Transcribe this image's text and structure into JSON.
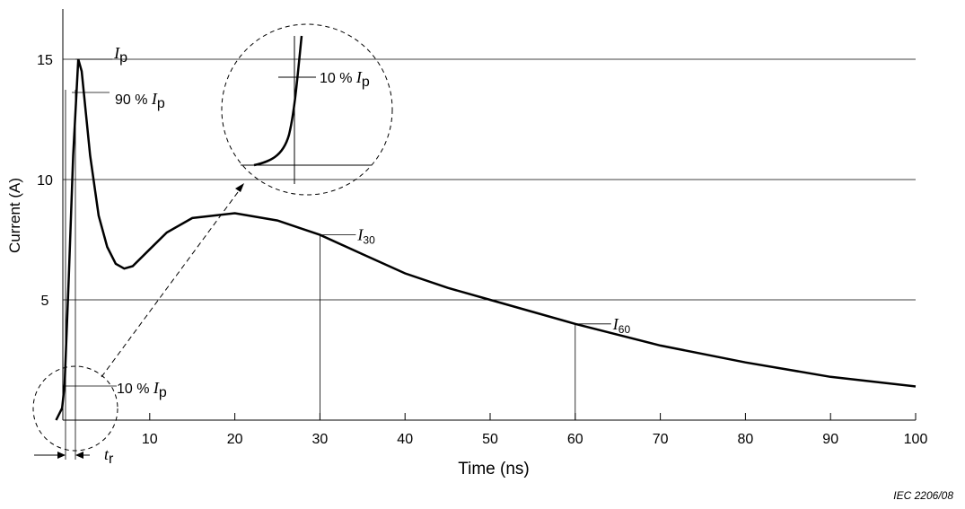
{
  "chart_data": {
    "type": "line",
    "x": [
      -1,
      -0.3,
      0,
      0.5,
      1,
      1.6,
      2,
      3,
      4,
      5,
      6,
      7,
      8,
      10,
      12,
      15,
      20,
      25,
      30,
      35,
      40,
      45,
      50,
      60,
      70,
      80,
      90,
      100
    ],
    "values": [
      0,
      0.5,
      1.5,
      6,
      11,
      15,
      14.5,
      11,
      8.5,
      7.2,
      6.5,
      6.3,
      6.4,
      7.1,
      7.8,
      8.4,
      8.6,
      8.3,
      7.7,
      6.9,
      6.1,
      5.5,
      5.0,
      4.0,
      3.1,
      2.4,
      1.8,
      1.4
    ],
    "color": "#000000",
    "xlabel": "Time   (ns)",
    "ylabel": "Current   (A)",
    "xlim": [
      0,
      100
    ],
    "ylim": [
      0,
      17
    ],
    "xticks": [
      10,
      20,
      30,
      40,
      50,
      60,
      70,
      80,
      90,
      100
    ],
    "yticks": [
      5,
      10,
      15
    ],
    "grid": true,
    "peak_label": {
      "symbol": "I",
      "subscript": "p"
    },
    "rise_labels": [
      {
        "text": "90 % ",
        "symbol": "I",
        "subscript": "p"
      },
      {
        "text": "10 % ",
        "symbol": "I",
        "subscript": "p"
      }
    ],
    "inset_label": {
      "text": "10 % ",
      "symbol": "I",
      "subscript": "p"
    },
    "markers": [
      {
        "x": 30,
        "symbol": "I",
        "subscript": "30"
      },
      {
        "x": 60,
        "symbol": "I",
        "subscript": "60"
      }
    ],
    "rise_time_label": {
      "symbol": "t",
      "subscript": "r"
    },
    "source": "IEC   2206/08"
  }
}
